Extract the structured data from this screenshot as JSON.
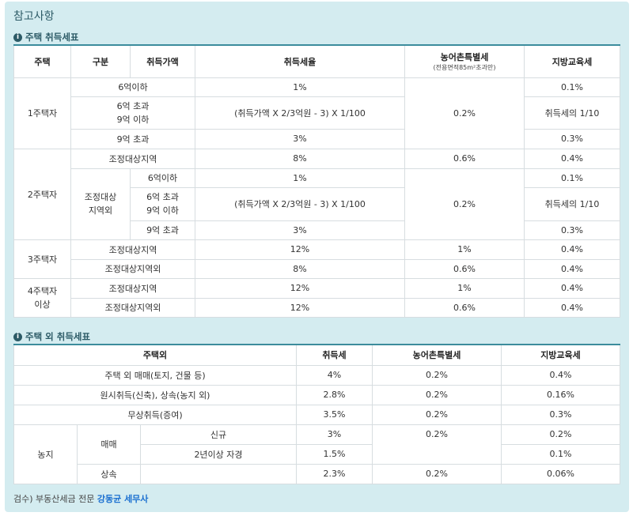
{
  "title": "참고사항",
  "section1": {
    "heading": "주택 취득세표",
    "headers": {
      "house": "주택",
      "category": "구분",
      "price": "취득가액",
      "rate": "취득세율",
      "rural": "농어촌특별세",
      "rural_sub": "(전용면적85m²초과만)",
      "edu": "지방교육세"
    },
    "r1": {
      "house": "1주택자",
      "price1": "6억이하",
      "rate1": "1%",
      "edu1": "0.1%",
      "price2": "6억 초과\n9억 이하",
      "rate2": "(취득가액 X 2/3억원 - 3) X 1/100",
      "rural": "0.2%",
      "edu2": "취득세의 1/10",
      "price3": "9억 초과",
      "rate3": "3%",
      "edu3": "0.3%"
    },
    "r2": {
      "house": "2주택자",
      "adj": "조정대상지역",
      "adj_rate": "8%",
      "adj_rural": "0.6%",
      "adj_edu": "0.4%",
      "nonadj": "조정대상\n지역외",
      "price1": "6억이하",
      "rate1": "1%",
      "edu1": "0.1%",
      "price2": "6억 초과\n9억 이하",
      "rate2": "(취득가액 X 2/3억원 - 3) X 1/100",
      "rural": "0.2%",
      "edu2": "취득세의 1/10",
      "price3": "9억 초과",
      "rate3": "3%",
      "edu3": "0.3%"
    },
    "r3": {
      "house": "3주택자",
      "adj": "조정대상지역",
      "adj_rate": "12%",
      "adj_rural": "1%",
      "adj_edu": "0.4%",
      "nonadj": "조정대상지역외",
      "nonadj_rate": "8%",
      "nonadj_rural": "0.6%",
      "nonadj_edu": "0.4%"
    },
    "r4": {
      "house": "4주택자\n이상",
      "adj": "조정대상지역",
      "adj_rate": "12%",
      "adj_rural": "1%",
      "adj_edu": "0.4%",
      "nonadj": "조정대상지역외",
      "nonadj_rate": "12%",
      "nonadj_rural": "0.6%",
      "nonadj_edu": "0.4%"
    }
  },
  "section2": {
    "heading": "주택 외 취득세표",
    "headers": {
      "type": "주택외",
      "tax": "취득세",
      "rural": "농어촌특별세",
      "edu": "지방교육세"
    },
    "rows": [
      {
        "label": "주택 외 매매(토지, 건물 등)",
        "tax": "4%",
        "rural": "0.2%",
        "edu": "0.4%"
      },
      {
        "label": "원시취득(신축), 상속(농지 외)",
        "tax": "2.8%",
        "rural": "0.2%",
        "edu": "0.16%"
      },
      {
        "label": "무상취득(증여)",
        "tax": "3.5%",
        "rural": "0.2%",
        "edu": "0.3%"
      }
    ],
    "farm": {
      "label": "농지",
      "sale": "매매",
      "new": "신규",
      "new_tax": "3%",
      "sale_rural": "0.2%",
      "new_edu": "0.2%",
      "self": "2년이상 자경",
      "self_tax": "1.5%",
      "self_edu": "0.1%",
      "inherit": "상속",
      "inherit_tax": "2.3%",
      "inherit_rural": "0.2%",
      "inherit_edu": "0.06%"
    }
  },
  "footer": {
    "prefix": "검수) 부동산세금 전문 ",
    "name": "강동균 세무사"
  }
}
